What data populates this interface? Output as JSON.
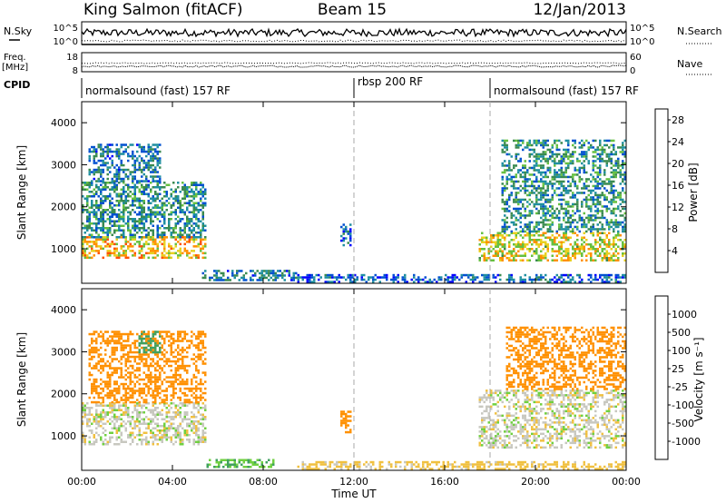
{
  "header": {
    "station": "King Salmon (fitACF)",
    "beam": "Beam 15",
    "date": "12/Jan/2013"
  },
  "nsky_panel": {
    "left_label": "N.Sky",
    "right_label": "N.Search",
    "left_ticks": [
      "10^5",
      "10^0"
    ],
    "right_ticks": [
      "10^5",
      "10^0"
    ]
  },
  "freq_panel": {
    "left_label_1": "Freq.",
    "left_label_2": "[MHz]",
    "right_label": "Nave",
    "left_ticks": [
      "18",
      "8"
    ],
    "right_ticks": [
      "60",
      "0"
    ]
  },
  "cpid": {
    "label": "CPID",
    "segments": [
      {
        "label": "normalsound (fast) 157 RF",
        "start_hour": 0
      },
      {
        "label": "rbsp 200 RF",
        "start_hour": 12
      },
      {
        "label": "normalsound (fast) 157 RF",
        "start_hour": 18
      }
    ]
  },
  "chart_data": [
    {
      "type": "heatmap",
      "panel": "power",
      "ylabel": "Slant Range [km]",
      "ylim": [
        180,
        4500
      ],
      "yticks": [
        "1000",
        "2000",
        "3000",
        "4000"
      ],
      "xlim_hours": [
        0,
        24
      ],
      "colorbar": {
        "label": "Power [dB]",
        "ticks": [
          "28",
          "24",
          "20",
          "16",
          "12",
          "8",
          "4"
        ],
        "range": [
          0,
          30
        ],
        "colors": [
          "#0000ff",
          "#0050d0",
          "#1f8fa0",
          "#3a8a50",
          "#66c040",
          "#e8d020",
          "#ff9000",
          "#ff5000",
          "#ff0000"
        ]
      },
      "echo_regions": [
        {
          "t0": 0.0,
          "t1": 5.5,
          "r0": 800,
          "r1": 1300,
          "power_db": 20
        },
        {
          "t0": 0.0,
          "t1": 5.5,
          "r0": 1300,
          "r1": 2600,
          "power_db": 10
        },
        {
          "t0": 0.3,
          "t1": 3.5,
          "r0": 2600,
          "r1": 3500,
          "power_db": 8
        },
        {
          "t0": 5.3,
          "t1": 9.5,
          "r0": 250,
          "r1": 500,
          "power_db": 8
        },
        {
          "t0": 11.4,
          "t1": 11.9,
          "r0": 1100,
          "r1": 1600,
          "power_db": 6
        },
        {
          "t0": 17.5,
          "t1": 24.0,
          "r0": 700,
          "r1": 1400,
          "power_db": 18
        },
        {
          "t0": 18.5,
          "t1": 24.0,
          "r0": 1400,
          "r1": 3600,
          "power_db": 10
        },
        {
          "t0": 9.5,
          "t1": 24.0,
          "r0": 200,
          "r1": 400,
          "power_db": 6
        }
      ]
    },
    {
      "type": "heatmap",
      "panel": "velocity",
      "ylabel": "Slant Range [km]",
      "xlabel": "Time UT",
      "ylim": [
        180,
        4500
      ],
      "yticks": [
        "1000",
        "2000",
        "3000",
        "4000"
      ],
      "xlim_hours": [
        0,
        24
      ],
      "xticks": [
        "00:00",
        "04:00",
        "08:00",
        "12:00",
        "16:00",
        "20:00",
        "00:00"
      ],
      "colorbar": {
        "label": "Velocity [m s⁻¹]",
        "ticks": [
          "1000",
          "500",
          "100",
          "25",
          "-25",
          "-100",
          "-500",
          "-1000"
        ],
        "colors": [
          "#2040c0",
          "#3070c0",
          "#40a060",
          "#70d040",
          "#c8c8c0",
          "#f0c040",
          "#ff9000",
          "#ff5000",
          "#ff0000"
        ]
      },
      "echo_regions": [
        {
          "t0": 0.0,
          "t1": 5.5,
          "r0": 800,
          "r1": 1800,
          "velocity": 0
        },
        {
          "t0": 0.3,
          "t1": 5.5,
          "r0": 1800,
          "r1": 3500,
          "velocity": -300
        },
        {
          "t0": 2.5,
          "t1": 3.5,
          "r0": 3000,
          "r1": 3500,
          "velocity": 150
        },
        {
          "t0": 5.5,
          "t1": 8.5,
          "r0": 250,
          "r1": 450,
          "velocity": 100
        },
        {
          "t0": 11.4,
          "t1": 11.9,
          "r0": 1100,
          "r1": 1600,
          "velocity": -300
        },
        {
          "t0": 17.5,
          "t1": 24.0,
          "r0": 700,
          "r1": 2100,
          "velocity": 0
        },
        {
          "t0": 18.7,
          "t1": 24.0,
          "r0": 2100,
          "r1": 3600,
          "velocity": -400
        },
        {
          "t0": 9.5,
          "t1": 24.0,
          "r0": 200,
          "r1": 400,
          "velocity": -50
        }
      ]
    }
  ]
}
